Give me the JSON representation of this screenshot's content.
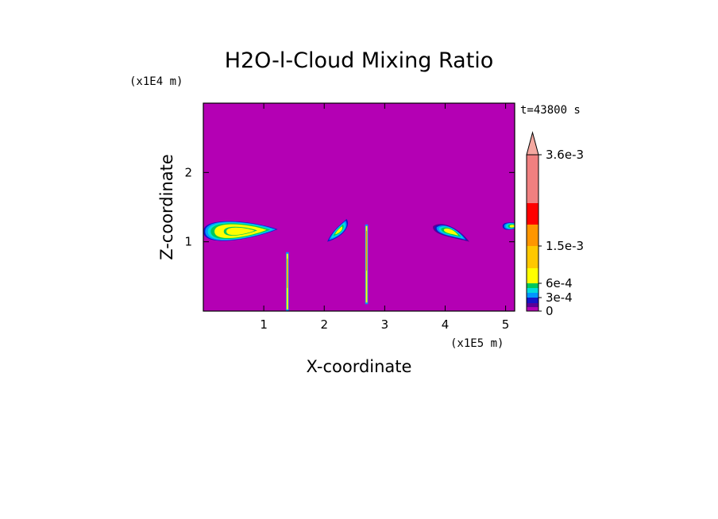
{
  "chart_data": {
    "type": "heatmap",
    "title": "H2O-l-Cloud Mixing Ratio",
    "xlabel": "X-coordinate",
    "ylabel": "Z-coordinate",
    "x_scale_label": "(x1E5 m)",
    "y_scale_label": "(x1E4 m)",
    "time_label": "t=43800 s",
    "xlim": [
      0,
      5.15
    ],
    "ylim": [
      0,
      3.0
    ],
    "x_ticks": [
      1,
      2,
      3,
      4,
      5
    ],
    "y_ticks": [
      1,
      2
    ],
    "background_color": "#b400b4",
    "colorbar": {
      "levels": [
        {
          "value": 0,
          "color": "#b400b4"
        },
        {
          "value": 0.0001,
          "color": "#5a0096"
        },
        {
          "value": 0.0002,
          "color": "#1414c8"
        },
        {
          "value": 0.0003,
          "color": "#0096ff"
        },
        {
          "value": 0.0004,
          "color": "#00dcdc"
        },
        {
          "value": 0.0005,
          "color": "#00c85a"
        },
        {
          "value": 0.0006,
          "color": "#ffff00"
        },
        {
          "value": 0.0009,
          "color": "#ffc800"
        },
        {
          "value": 0.0015,
          "color": "#ff9600"
        },
        {
          "value": 0.0021,
          "color": "#ff0000"
        },
        {
          "value": 0.0028,
          "color": "#f08080"
        },
        {
          "value": 0.0036,
          "color": "#f4a8a0"
        }
      ],
      "tick_labels": [
        {
          "value": 0,
          "label": "0"
        },
        {
          "value": 0.0003,
          "label": "3e-4"
        },
        {
          "value": 0.0006,
          "label": "6e-4"
        },
        {
          "value": 0.0015,
          "label": "1.5e-3"
        },
        {
          "value": 0.0036,
          "label": "3.6e-3"
        }
      ]
    },
    "features": [
      {
        "type": "cloud",
        "x": [
          0.0,
          1.23
        ],
        "z": [
          0.95,
          1.35
        ]
      },
      {
        "type": "cloud",
        "x": [
          2.05,
          2.45
        ],
        "z": [
          1.0,
          1.33
        ]
      },
      {
        "type": "cloud",
        "x": [
          3.8,
          4.4
        ],
        "z": [
          1.0,
          1.3
        ]
      },
      {
        "type": "cloud",
        "x": [
          4.95,
          5.15
        ],
        "z": [
          1.15,
          1.3
        ]
      },
      {
        "type": "streak",
        "x": [
          1.38,
          1.4
        ],
        "z": [
          0.0,
          0.85
        ]
      },
      {
        "type": "streak",
        "x": [
          2.68,
          2.72
        ],
        "z": [
          0.1,
          1.25
        ]
      }
    ]
  }
}
